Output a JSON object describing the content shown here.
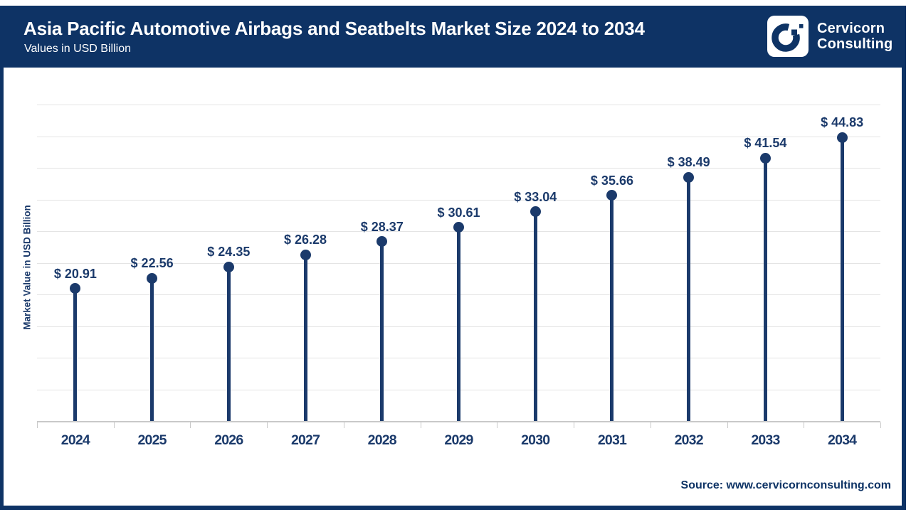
{
  "header": {
    "title": "Asia Pacific Automotive Airbags and Seatbelts Market Size 2024 to 2034",
    "subtitle": "Values in USD Billion",
    "logo": {
      "line1": "Cervicorn",
      "line2": "Consulting"
    }
  },
  "chart_data": {
    "type": "lollipop",
    "title": "Asia Pacific Automotive Airbags and Seatbelts Market Size 2024 to 2034",
    "subtitle": "Values in USD Billion",
    "categories": [
      "2024",
      "2025",
      "2026",
      "2027",
      "2028",
      "2029",
      "2030",
      "2031",
      "2032",
      "2033",
      "2034"
    ],
    "values": [
      20.91,
      22.56,
      24.35,
      26.28,
      28.37,
      30.61,
      33.04,
      35.66,
      38.49,
      41.54,
      44.83
    ],
    "value_prefix": "$ ",
    "xlabel": "",
    "ylabel": "Market Value in USD Billion",
    "ylim": [
      0,
      50
    ],
    "gridline_step": 5,
    "grid": true,
    "legend": "none",
    "colors": {
      "brand_navy": "#0e3365",
      "chart_navy": "#1b3a6b",
      "gridline": "#e4e4e4",
      "axis": "#c9c9c9",
      "title_text": "#ffffff"
    }
  },
  "footer": {
    "source": "Source: www.cervicornconsulting.com"
  }
}
